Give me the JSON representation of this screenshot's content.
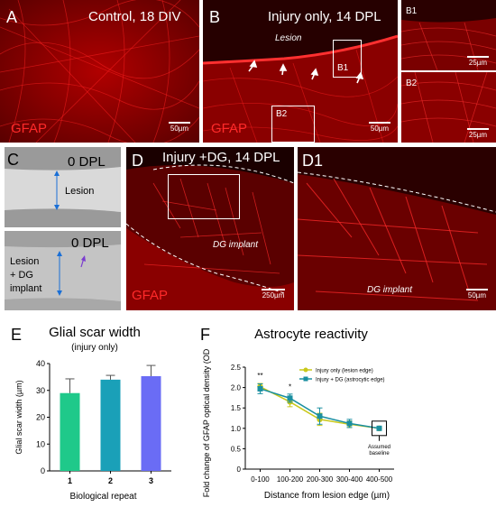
{
  "panelA": {
    "letter": "A",
    "title": "Control, 18 DIV",
    "stain": "GFAP",
    "scale": "50µm"
  },
  "panelB": {
    "letter": "B",
    "title": "Injury only, 14 DPL",
    "stain": "GFAP",
    "scale": "50µm",
    "region": "Lesion",
    "box1": "B1",
    "box2": "B2"
  },
  "panelB1": {
    "letter": "B1",
    "scale": "25µm"
  },
  "panelB2": {
    "letter": "B2",
    "scale": "25µm"
  },
  "panelC": {
    "letter": "C",
    "top_title": "0 DPL",
    "top_label": "Lesion",
    "bottom_title": "0 DPL",
    "bottom_label_1": "Lesion",
    "bottom_label_2": "+ DG",
    "bottom_label_3": "implant"
  },
  "panelD": {
    "letter": "D",
    "title": "Injury +DG, 14 DPL",
    "stain": "GFAP",
    "scale": "250µm",
    "region": "DG implant"
  },
  "panelD1": {
    "letter": "D1",
    "scale": "50µm",
    "region": "DG implant"
  },
  "panelE": {
    "letter": "E"
  },
  "panelF": {
    "letter": "F"
  },
  "colors": {
    "bar1": "#1fc98a",
    "bar2": "#1aa0b8",
    "bar3": "#6a6cf5",
    "injury_only": "#c9c81a",
    "injury_dg": "#1a8fa0"
  },
  "chart_data": [
    {
      "type": "bar",
      "title": "Glial scar width",
      "subtitle": "(injury only)",
      "xlabel": "Biological repeat",
      "ylabel": "Glial scar width (µm)",
      "categories": [
        "1",
        "2",
        "3"
      ],
      "values": [
        29,
        34,
        35.3
      ],
      "errors": [
        5.3,
        1.6,
        4.0
      ],
      "ylim": [
        0,
        40
      ],
      "yticks": [
        0,
        10,
        20,
        30,
        40
      ],
      "bar_colors": [
        "#1fc98a",
        "#1aa0b8",
        "#6a6cf5"
      ]
    },
    {
      "type": "line",
      "title": "Astrocyte reactivity",
      "xlabel": "Distance from lesion edge (µm)",
      "ylabel": "Fold change of GFAP optical density (OD)",
      "categories": [
        "0-100",
        "100-200",
        "200-300",
        "300-400",
        "400-500"
      ],
      "ylim": [
        0,
        2.5
      ],
      "yticks": [
        "0",
        "0.5",
        "1.0",
        "1.5",
        "2.0",
        "2.5"
      ],
      "legend_position": "top-right",
      "series": [
        {
          "name": "Injury only (lesion edge)",
          "values": [
            2.02,
            1.65,
            1.22,
            1.1,
            1.0
          ],
          "errors": [
            0.08,
            0.12,
            0.15,
            0.08,
            0.0
          ],
          "marker": "circle",
          "color": "#c9c81a"
        },
        {
          "name": "Injury + DG (astrocytic edge)",
          "values": [
            1.97,
            1.74,
            1.3,
            1.12,
            1.0
          ],
          "errors": [
            0.12,
            0.1,
            0.2,
            0.1,
            0.0
          ],
          "marker": "square",
          "color": "#1a8fa0"
        }
      ],
      "significance": [
        "**",
        "*",
        "",
        "",
        ""
      ],
      "annotation": {
        "line1": "Assumed",
        "line2": "baseline"
      }
    }
  ]
}
